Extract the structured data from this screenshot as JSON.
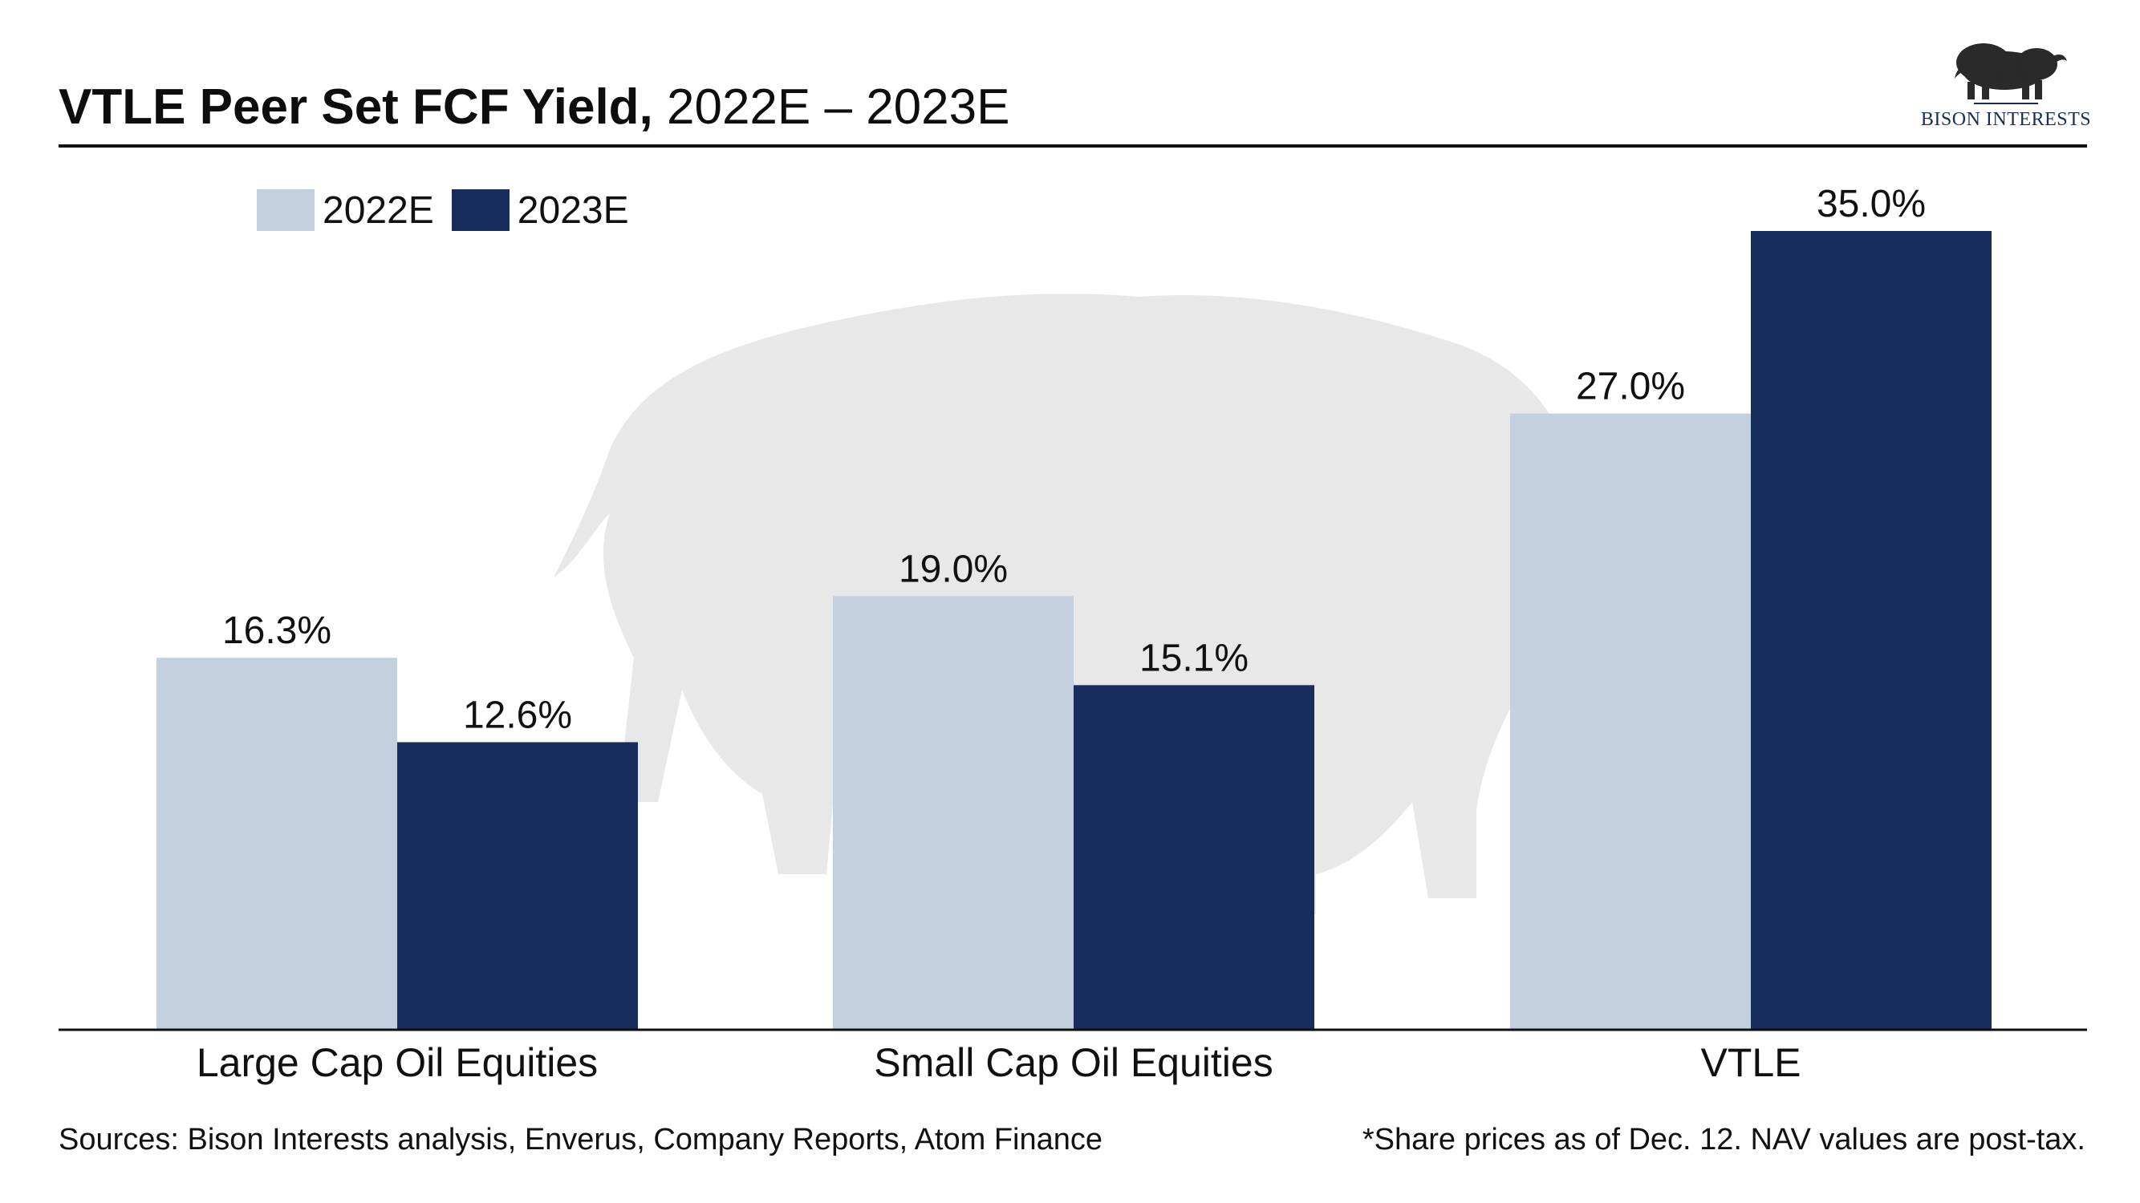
{
  "header": {
    "title_bold": "VTLE Peer Set FCF Yield,",
    "title_rest": " 2022E – 2023E"
  },
  "logo": {
    "text": "BISON INTERESTS",
    "icon": "bison-icon"
  },
  "chart_data": {
    "type": "bar",
    "categories": [
      "Large Cap Oil Equities",
      "Small Cap Oil Equities",
      "VTLE"
    ],
    "series": [
      {
        "name": "2022E",
        "values": [
          16.3,
          19.0,
          27.0
        ],
        "labels": [
          "16.3%",
          "19.0%",
          "27.0%"
        ],
        "color": "#c4cfe0"
      },
      {
        "name": "2023E",
        "values": [
          12.6,
          15.1,
          35.0
        ],
        "labels": [
          "12.6%",
          "15.1%",
          "35.0%"
        ],
        "color": "#172d5b"
      }
    ],
    "ylim": [
      0,
      35.0
    ],
    "grid": false,
    "legend_position": "top-left",
    "watermark": "bison-silhouette"
  },
  "footer": {
    "sources": "Sources: Bison Interests analysis, Enverus, Company Reports, Atom Finance",
    "note": "*Share prices as of Dec. 12. NAV values are post-tax."
  }
}
